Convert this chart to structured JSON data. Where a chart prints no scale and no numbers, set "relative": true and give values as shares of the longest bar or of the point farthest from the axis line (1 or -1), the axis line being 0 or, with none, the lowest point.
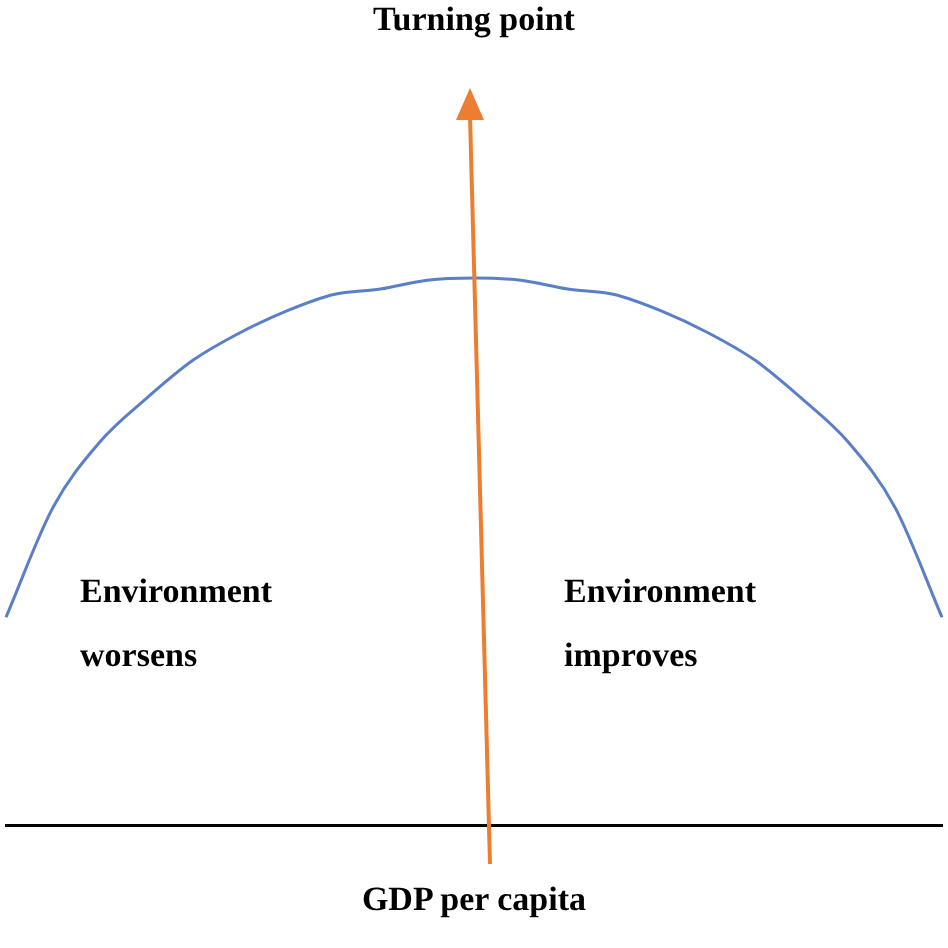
{
  "chart_data": {
    "type": "line",
    "title": "Turning point",
    "xlabel": "GDP per capita",
    "relative": true,
    "categories": [
      null,
      null,
      null,
      null,
      null,
      null,
      null,
      null,
      null,
      null,
      null,
      null,
      null,
      null,
      null,
      null,
      null,
      null,
      null,
      null,
      null
    ],
    "series": [
      {
        "color": "#5b7fc7",
        "values": [
          0.38,
          0.58,
          0.7,
          0.78,
          0.85,
          0.9,
          0.94,
          0.97,
          0.98,
          0.996,
          1.0,
          0.996,
          0.98,
          0.97,
          0.94,
          0.9,
          0.85,
          0.78,
          0.7,
          0.58,
          0.38
        ]
      }
    ],
    "annotations": [
      "Environment worsens",
      "Environment improves"
    ],
    "grid": false,
    "legend": false,
    "marker": "none",
    "line_style": "solid"
  }
}
